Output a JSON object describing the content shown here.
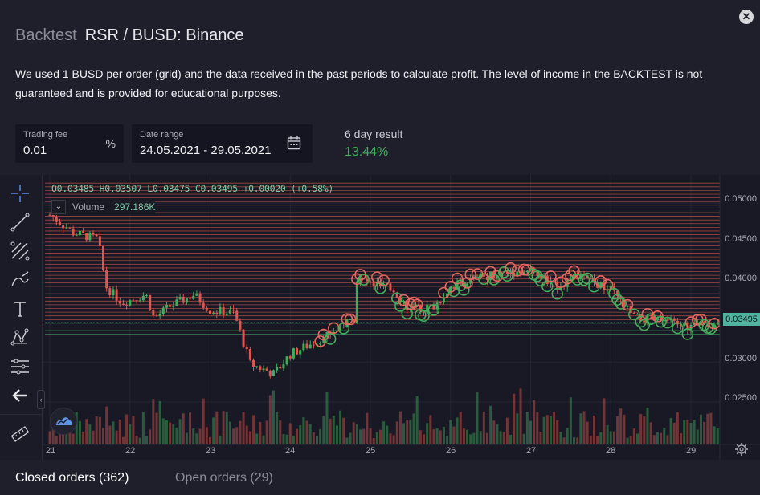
{
  "header": {
    "prefix": "Backtest",
    "pair": "RSR / BUSD: Binance"
  },
  "description": "We used 1 BUSD per order (grid) and the data received in the past periods to calculate profit. The level of income in the BACKTEST is not guaranteed and is provided for educational purposes.",
  "trading_fee": {
    "label": "Trading fee",
    "value": "0.01",
    "suffix": "%"
  },
  "date_range": {
    "label": "Date range",
    "value": "24.05.2021 - 29.05.2021"
  },
  "result": {
    "label": "6 day result",
    "value": "13.44%"
  },
  "legend": {
    "ohlc": "O0.03485  H0.03507  L0.03475  C0.03495  +0.00020 (+0.58%)",
    "volume_label": "Volume",
    "volume_value": "297.186K",
    "chevron": "⌄"
  },
  "price_axis": [
    "0.05000",
    "0.04500",
    "0.04000",
    "0.03000",
    "0.02500"
  ],
  "current_price": "0.03495",
  "time_axis": [
    "21",
    "22",
    "23",
    "24",
    "25",
    "26",
    "27",
    "28",
    "29"
  ],
  "tabs": {
    "closed": "Closed orders (362)",
    "open": "Open orders (29)"
  },
  "icons": {
    "close": "close-icon",
    "calendar": "calendar-icon",
    "settings": "gear-icon"
  },
  "colors": {
    "up": "#3fae5a",
    "down": "#e0564f",
    "accent": "#4fb3a0"
  },
  "chart_data": {
    "type": "candlestick",
    "title": "RSR / BUSD: Binance",
    "ylim": [
      0.021,
      0.0525
    ],
    "x_ticks": [
      "21",
      "22",
      "23",
      "24",
      "25",
      "26",
      "27",
      "28",
      "29"
    ],
    "close_approx": [
      {
        "day": 21.0,
        "price": 0.0485
      },
      {
        "day": 21.3,
        "price": 0.0462
      },
      {
        "day": 21.6,
        "price": 0.0455
      },
      {
        "day": 21.7,
        "price": 0.0395
      },
      {
        "day": 21.9,
        "price": 0.0375
      },
      {
        "day": 22.2,
        "price": 0.0385
      },
      {
        "day": 22.3,
        "price": 0.0355
      },
      {
        "day": 22.5,
        "price": 0.037
      },
      {
        "day": 22.8,
        "price": 0.0385
      },
      {
        "day": 23.0,
        "price": 0.0365
      },
      {
        "day": 23.3,
        "price": 0.0362
      },
      {
        "day": 23.5,
        "price": 0.0298
      },
      {
        "day": 23.8,
        "price": 0.0285
      },
      {
        "day": 24.0,
        "price": 0.031
      },
      {
        "day": 24.3,
        "price": 0.0325
      },
      {
        "day": 24.8,
        "price": 0.0355
      },
      {
        "day": 24.82,
        "price": 0.0405
      },
      {
        "day": 25.3,
        "price": 0.039
      },
      {
        "day": 25.5,
        "price": 0.0365
      },
      {
        "day": 25.8,
        "price": 0.037
      },
      {
        "day": 26.0,
        "price": 0.0395
      },
      {
        "day": 26.5,
        "price": 0.041
      },
      {
        "day": 27.0,
        "price": 0.0415
      },
      {
        "day": 27.3,
        "price": 0.0395
      },
      {
        "day": 27.6,
        "price": 0.0408
      },
      {
        "day": 28.0,
        "price": 0.039
      },
      {
        "day": 28.3,
        "price": 0.0355
      },
      {
        "day": 28.6,
        "price": 0.0352
      },
      {
        "day": 29.0,
        "price": 0.0345
      },
      {
        "day": 29.3,
        "price": 0.0349
      }
    ],
    "grid_levels_range": [
      0.0335,
      0.0525
    ],
    "current_price": 0.03495
  }
}
